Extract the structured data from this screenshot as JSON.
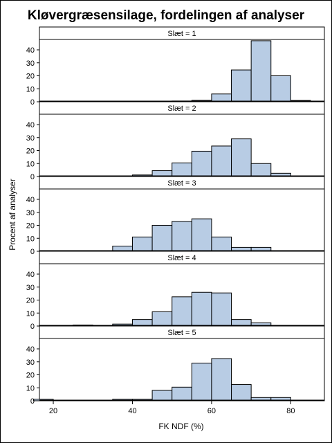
{
  "chart_data": {
    "type": "bar",
    "title": "Kløvergræsensilage, fordelingen af analyser",
    "xlabel": "FK NDF (%)",
    "ylabel": "Procent af analyser",
    "xlim": [
      16.5,
      88.5
    ],
    "ylim": [
      0,
      48
    ],
    "x_ticks": [
      20,
      40,
      60,
      80
    ],
    "y_ticks": [
      0,
      10,
      20,
      30,
      40
    ],
    "bin_width": 5,
    "grid": false,
    "panels": [
      {
        "label": "Slæt = 1",
        "bins": [
          {
            "x": 47.5,
            "value": 0.4
          },
          {
            "x": 52.5,
            "value": 0.6
          },
          {
            "x": 57.5,
            "value": 1.1
          },
          {
            "x": 62.5,
            "value": 6.0
          },
          {
            "x": 67.5,
            "value": 24.5
          },
          {
            "x": 72.5,
            "value": 47.0
          },
          {
            "x": 77.5,
            "value": 20.0
          },
          {
            "x": 82.5,
            "value": 1.0
          }
        ]
      },
      {
        "label": "Slæt = 2",
        "bins": [
          {
            "x": 42.5,
            "value": 1.2
          },
          {
            "x": 47.5,
            "value": 4.5
          },
          {
            "x": 52.5,
            "value": 10.5
          },
          {
            "x": 57.5,
            "value": 19.5
          },
          {
            "x": 62.5,
            "value": 23.5
          },
          {
            "x": 67.5,
            "value": 29.0
          },
          {
            "x": 72.5,
            "value": 10.0
          },
          {
            "x": 77.5,
            "value": 2.5
          }
        ]
      },
      {
        "label": "Slæt = 3",
        "bins": [
          {
            "x": 37.5,
            "value": 4.0
          },
          {
            "x": 42.5,
            "value": 11.0
          },
          {
            "x": 47.5,
            "value": 20.0
          },
          {
            "x": 52.5,
            "value": 23.0
          },
          {
            "x": 57.5,
            "value": 25.0
          },
          {
            "x": 62.5,
            "value": 11.0
          },
          {
            "x": 67.5,
            "value": 3.0
          },
          {
            "x": 72.5,
            "value": 3.0
          }
        ]
      },
      {
        "label": "Slæt = 4",
        "bins": [
          {
            "x": 27.5,
            "value": 0.8
          },
          {
            "x": 37.5,
            "value": 1.5
          },
          {
            "x": 42.5,
            "value": 5.0
          },
          {
            "x": 47.5,
            "value": 11.0
          },
          {
            "x": 52.5,
            "value": 22.5
          },
          {
            "x": 57.5,
            "value": 26.0
          },
          {
            "x": 62.5,
            "value": 25.5
          },
          {
            "x": 67.5,
            "value": 5.0
          },
          {
            "x": 72.5,
            "value": 2.5
          }
        ]
      },
      {
        "label": "Slæt = 5",
        "bins": [
          {
            "x": 17.5,
            "value": 1.2
          },
          {
            "x": 37.5,
            "value": 1.2
          },
          {
            "x": 42.5,
            "value": 1.2
          },
          {
            "x": 47.5,
            "value": 8.0
          },
          {
            "x": 52.5,
            "value": 10.5
          },
          {
            "x": 57.5,
            "value": 29.0
          },
          {
            "x": 62.5,
            "value": 32.5
          },
          {
            "x": 67.5,
            "value": 12.5
          },
          {
            "x": 72.5,
            "value": 2.5
          },
          {
            "x": 77.5,
            "value": 2.5
          }
        ]
      }
    ]
  },
  "colors": {
    "bar_fill": "#b8cce4",
    "bar_stroke": "#000000",
    "strip_fill": "#ffffff",
    "frame": "#000000"
  }
}
